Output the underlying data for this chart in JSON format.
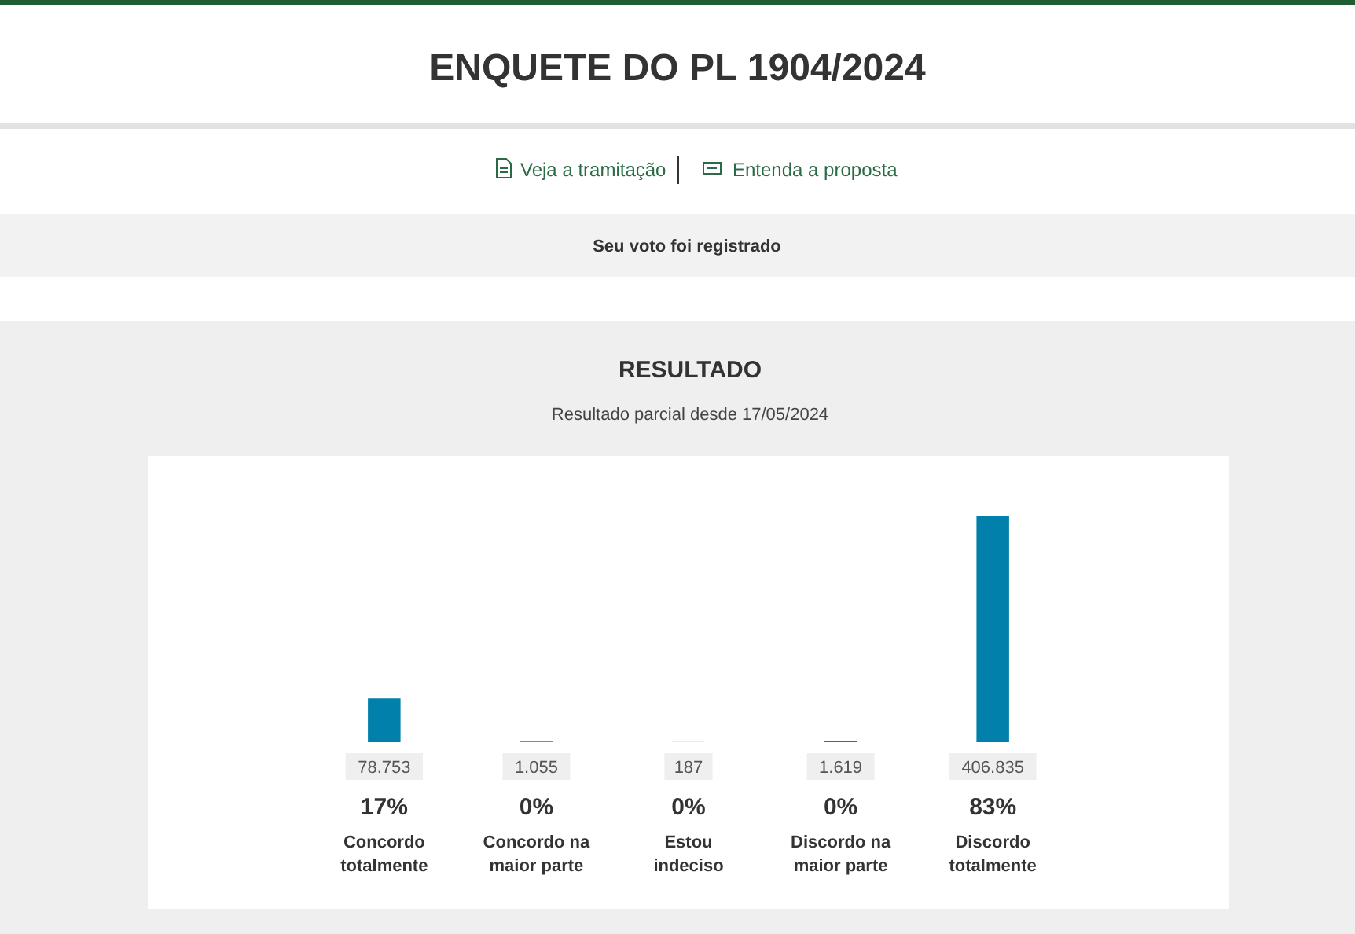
{
  "chart_data": {
    "type": "bar",
    "title": "RESULTADO",
    "subtitle": "Resultado parcial desde 17/05/2024",
    "categories": [
      "Concordo totalmente",
      "Concordo na maior parte",
      "Estou indeciso",
      "Discordo na maior parte",
      "Discordo totalmente"
    ],
    "values": [
      78753,
      1055,
      187,
      1619,
      406835
    ],
    "value_labels": [
      "78.753",
      "1.055",
      "187",
      "1.619",
      "406.835"
    ],
    "color": "#0080aa",
    "annotations": [
      "ENQUETE DO PL 1904/2024",
      "Veja a tramitação",
      "Entenda a proposta",
      "Seu voto foi registrado",
      "17%",
      "0%",
      "0%",
      "0%",
      "83%"
    ]
  }
}
